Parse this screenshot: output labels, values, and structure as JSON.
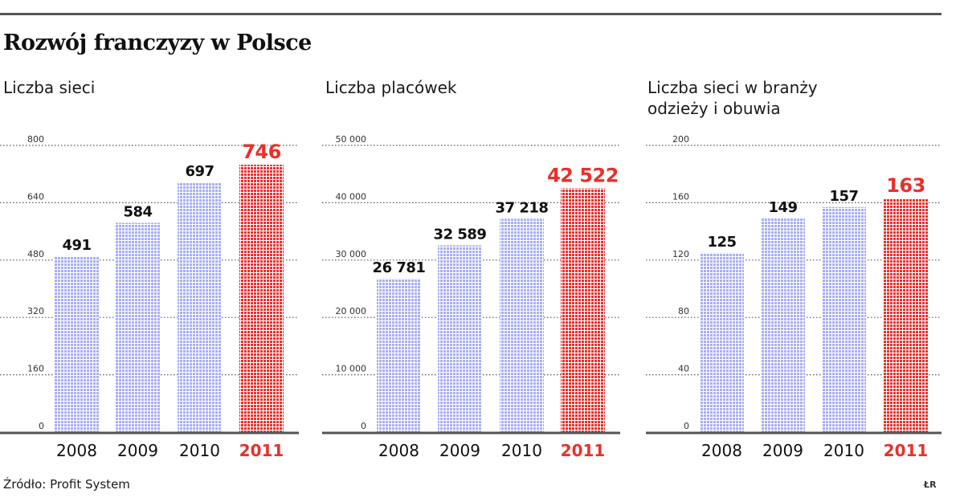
{
  "title": "Rozwój franczyzy w Polsce",
  "source": "Źródło: Profit System",
  "signature": "ŁR",
  "colors": {
    "bar_regular": "#a9aef5",
    "bar_highlight": "#e8302c",
    "label_highlight": "#e8302c",
    "label_regular": "#111111",
    "grid": "#555555",
    "baseline": "#555555"
  },
  "chart_data": [
    {
      "type": "bar",
      "title": "Liczba sieci",
      "categories": [
        "2008",
        "2009",
        "2010",
        "2011"
      ],
      "values": [
        491,
        584,
        697,
        746
      ],
      "value_labels": [
        "491",
        "584",
        "697",
        "746"
      ],
      "highlight_index": 3,
      "ylim": [
        0,
        800
      ],
      "yticks": [
        0,
        160,
        320,
        480,
        640,
        800
      ],
      "ytick_labels": [
        "0",
        "160",
        "320",
        "480",
        "640",
        "800"
      ],
      "grid": true
    },
    {
      "type": "bar",
      "title": "Liczba placówek",
      "categories": [
        "2008",
        "2009",
        "2010",
        "2011"
      ],
      "values": [
        26781,
        32589,
        37218,
        42522
      ],
      "value_labels": [
        "26 781",
        "32 589",
        "37 218",
        "42 522"
      ],
      "highlight_index": 3,
      "ylim": [
        0,
        50000
      ],
      "yticks": [
        0,
        10000,
        20000,
        30000,
        40000,
        50000
      ],
      "ytick_labels": [
        "0",
        "10 000",
        "20 000",
        "30 000",
        "40 000",
        "50 000"
      ],
      "grid": true
    },
    {
      "type": "bar",
      "title": "Liczba sieci w branży odzieży i obuwia",
      "categories": [
        "2008",
        "2009",
        "2010",
        "2011"
      ],
      "values": [
        125,
        149,
        157,
        163
      ],
      "value_labels": [
        "125",
        "149",
        "157",
        "163"
      ],
      "highlight_index": 3,
      "ylim": [
        0,
        200
      ],
      "yticks": [
        0,
        40,
        80,
        120,
        160,
        200
      ],
      "ytick_labels": [
        "0",
        "40",
        "80",
        "120",
        "160",
        "200"
      ],
      "grid": true
    }
  ]
}
